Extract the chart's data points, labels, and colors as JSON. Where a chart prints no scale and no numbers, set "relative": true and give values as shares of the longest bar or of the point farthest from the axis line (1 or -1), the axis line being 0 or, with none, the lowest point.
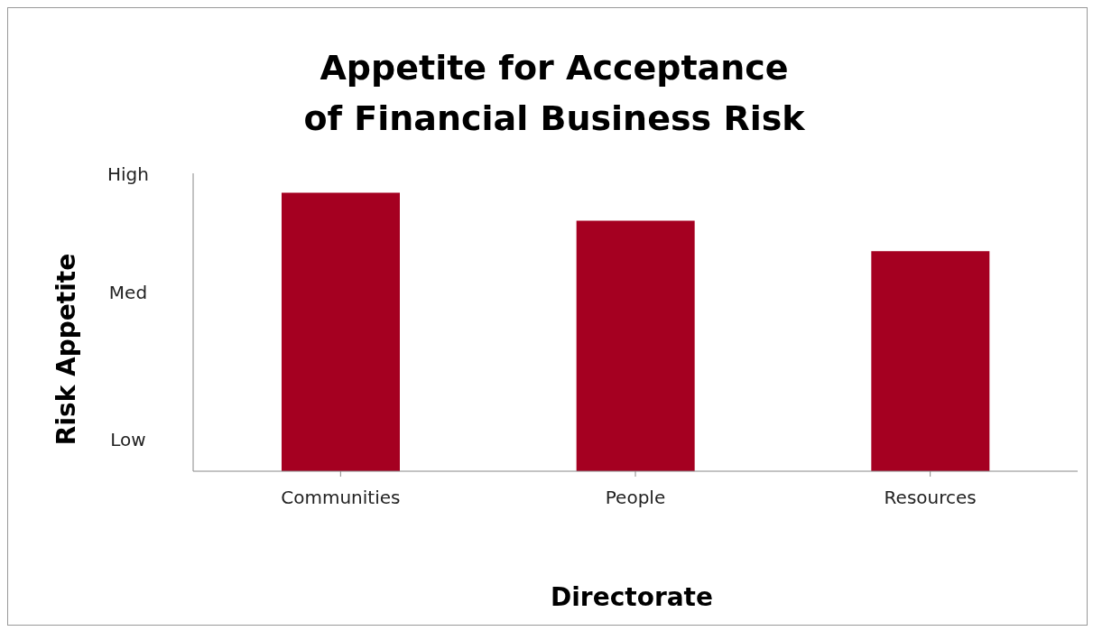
{
  "chart_data": {
    "type": "bar",
    "title": "Appetite for Acceptance\nof Financial Business Risk",
    "xlabel": "Directorate",
    "ylabel": "Risk Appetite",
    "categories": [
      "Communities",
      "People",
      "Resources"
    ],
    "values": [
      1,
      0.9,
      0.79
    ],
    "color": "#a50021",
    "relative": true,
    "grid": false,
    "legend": false,
    "annotations": [
      "High",
      "Med",
      "Low"
    ]
  }
}
